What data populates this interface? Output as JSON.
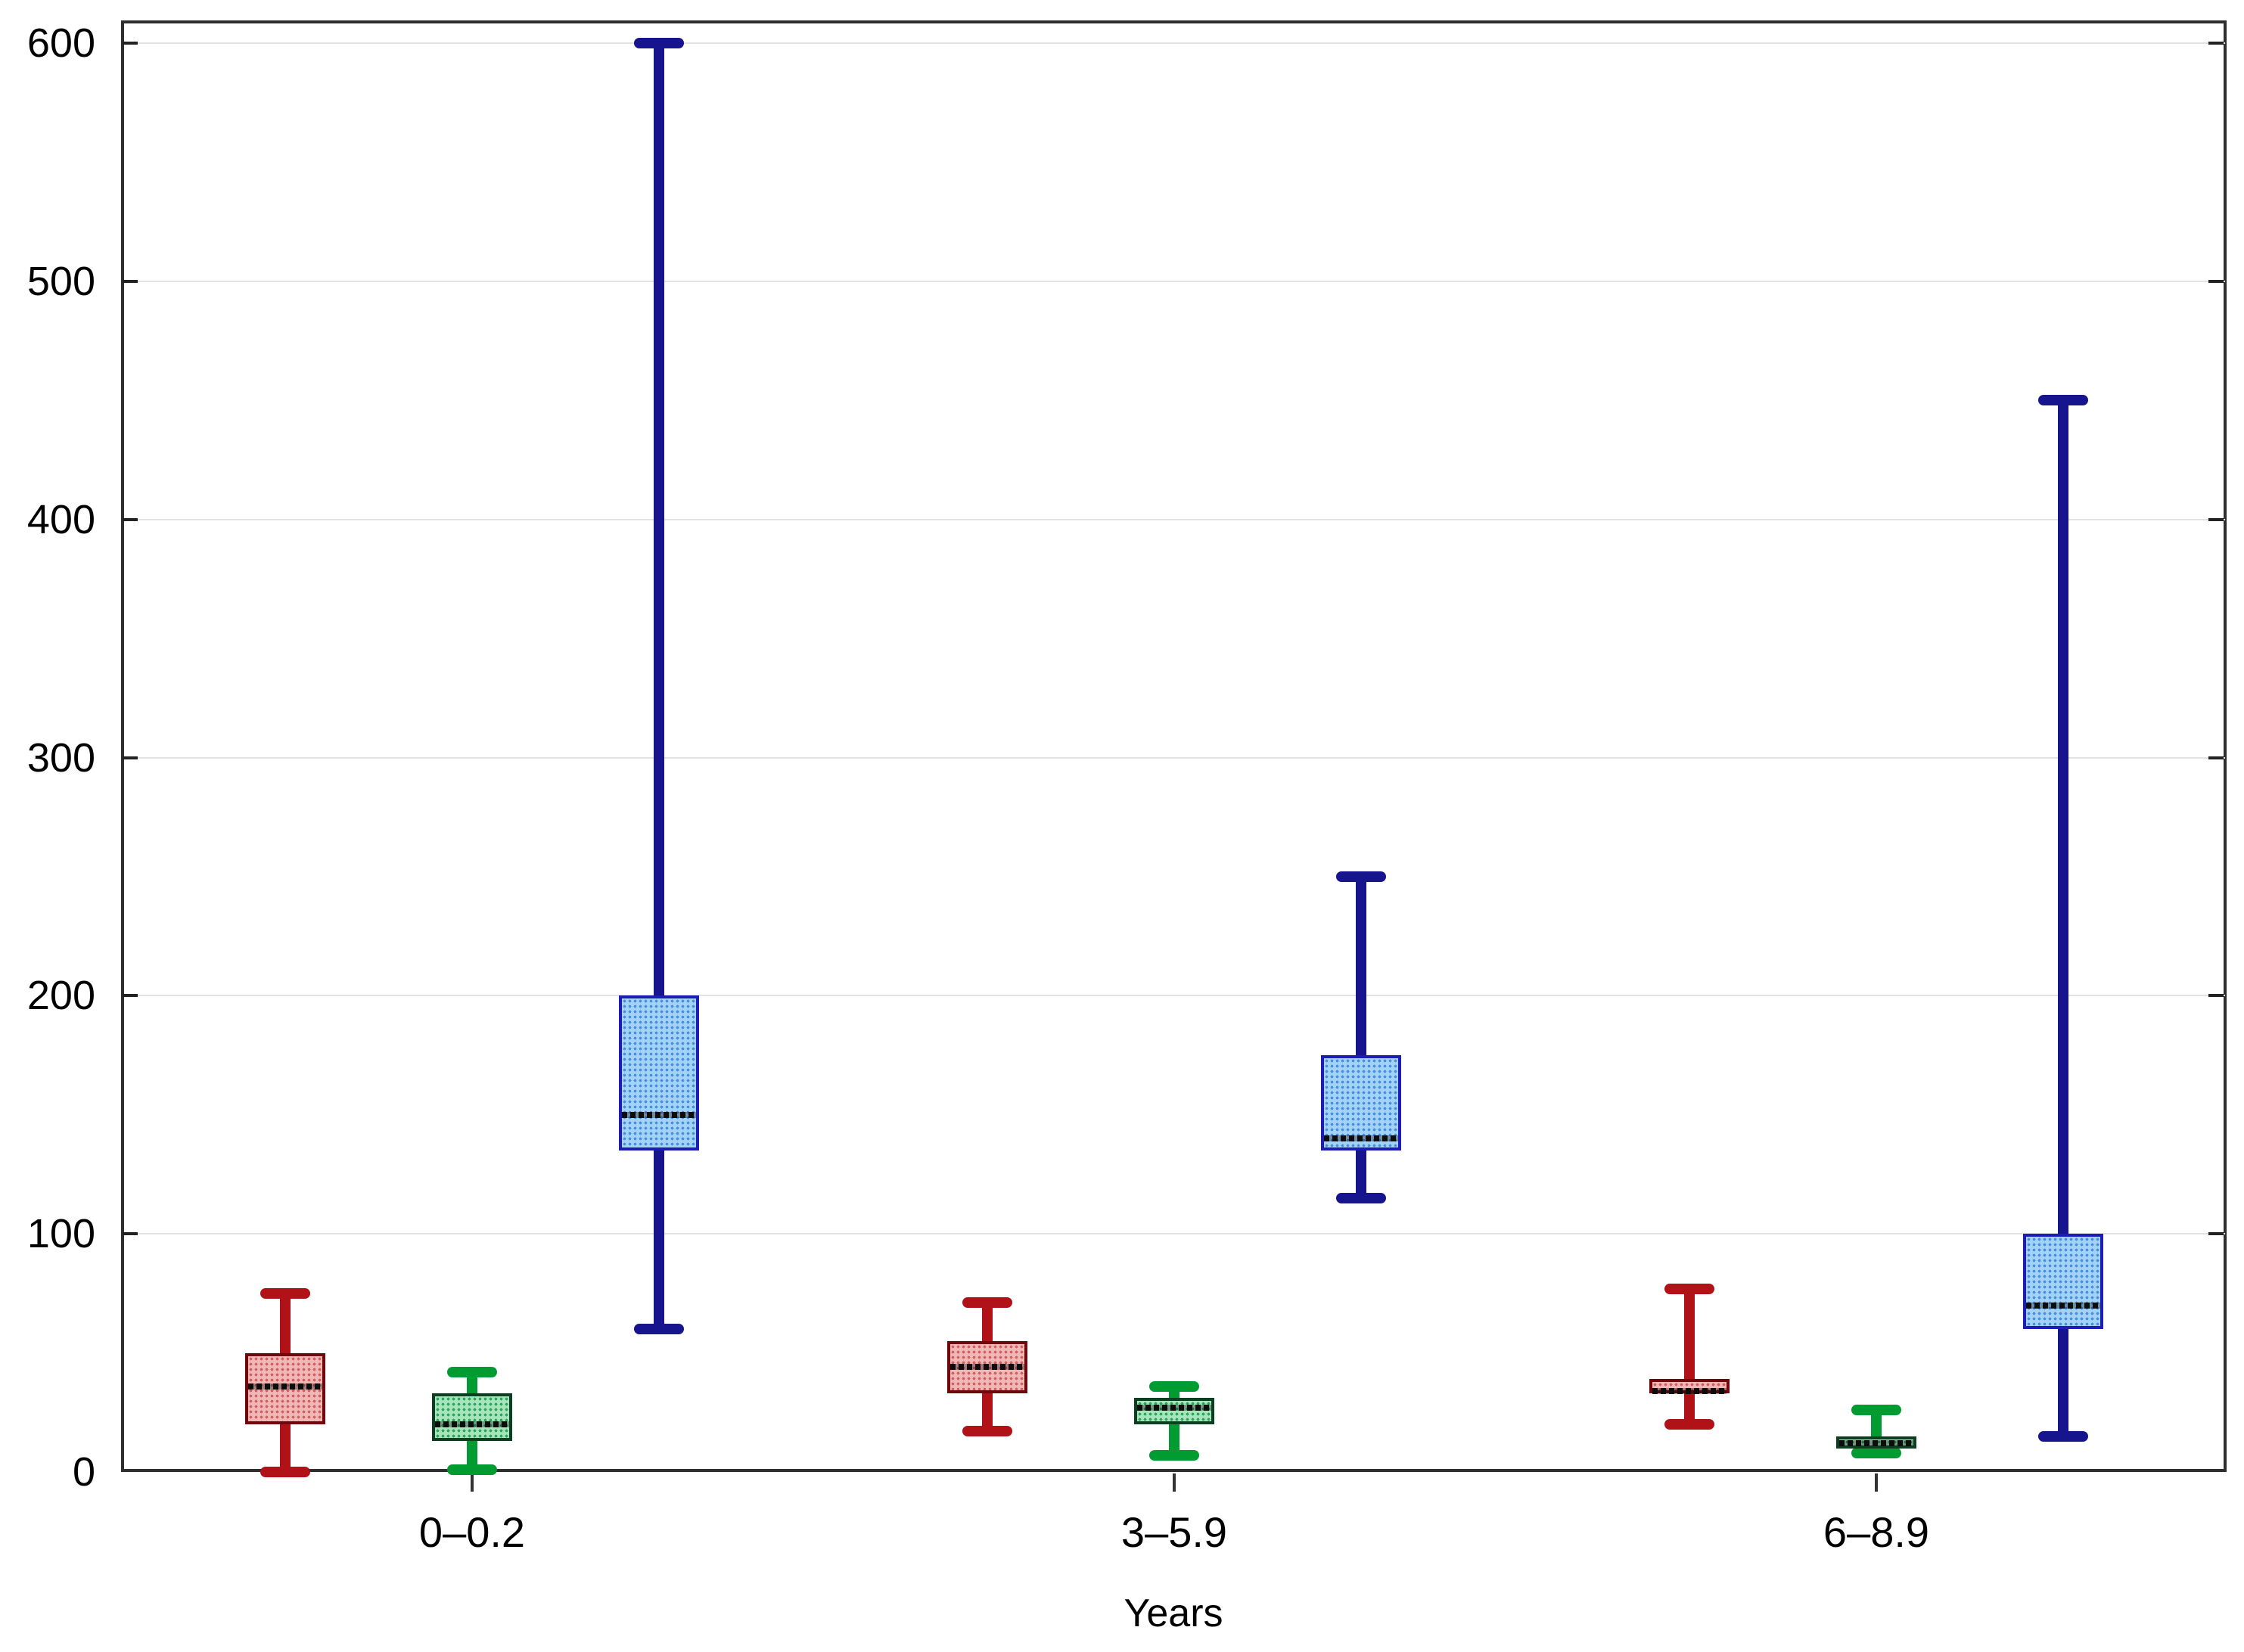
{
  "chart_data": {
    "type": "box",
    "title": "",
    "xlabel": "Years",
    "ylabel": "",
    "ylim": [
      0,
      600
    ],
    "yticks": [
      0,
      100,
      200,
      300,
      400,
      500,
      600
    ],
    "grid": "horizontal light-gray lines at every 100",
    "legend": "none",
    "categories": [
      "0–0.2",
      "3–5.9",
      "6–8.9"
    ],
    "series": [
      {
        "name": "red",
        "colors": {
          "whisker": "#b11217",
          "border": "#71070c",
          "fill": "#f1b6b6",
          "dot": "#d06262"
        },
        "boxes": [
          {
            "min": 0,
            "q1": 20,
            "median": 36,
            "q3": 50,
            "max": 75
          },
          {
            "min": 17,
            "q1": 33,
            "median": 44,
            "q3": 55,
            "max": 71
          },
          {
            "min": 20,
            "q1": 33,
            "median": 34,
            "q3": 39,
            "max": 77
          }
        ]
      },
      {
        "name": "green",
        "colors": {
          "whisker": "#009c31",
          "border": "#0c3f1f",
          "fill": "#a6e4bb",
          "dot": "#2fa65c"
        },
        "boxes": [
          {
            "min": 1,
            "q1": 13,
            "median": 20,
            "q3": 33,
            "max": 42
          },
          {
            "min": 7,
            "q1": 20,
            "median": 27,
            "q3": 31,
            "max": 36
          },
          {
            "min": 8,
            "q1": 10,
            "median": 12,
            "q3": 15,
            "max": 26
          }
        ]
      },
      {
        "name": "blue",
        "colors": {
          "whisker": "#16158d",
          "border": "#1d1cb5",
          "fill": "#a3d2f7",
          "dot": "#4b8fe2"
        },
        "boxes": [
          {
            "min": 60,
            "q1": 135,
            "median": 150,
            "q3": 200,
            "max": 600
          },
          {
            "min": 115,
            "q1": 135,
            "median": 140,
            "q3": 175,
            "max": 250
          },
          {
            "min": 15,
            "q1": 60,
            "median": 70,
            "q3": 100,
            "max": 450
          }
        ]
      }
    ]
  }
}
